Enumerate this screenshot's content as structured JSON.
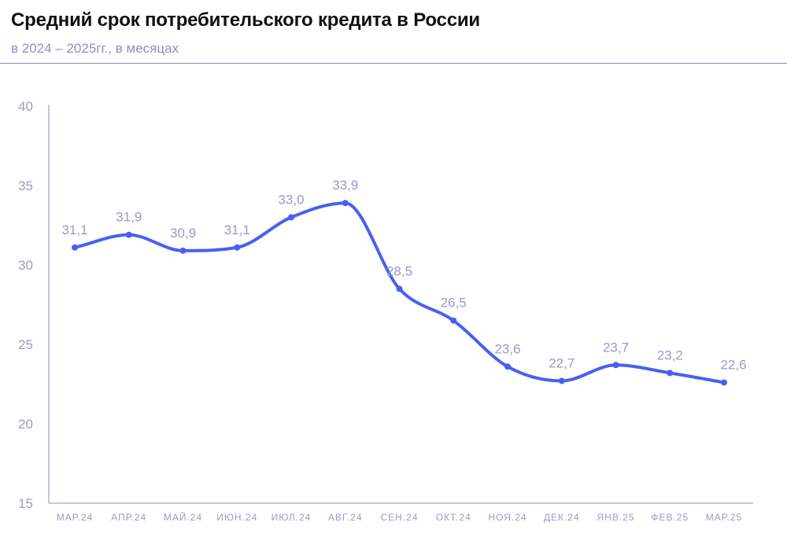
{
  "header": {
    "title": "Средний срок потребительского кредита в России",
    "subtitle": "в 2024 – 2025гг., в месяцах"
  },
  "colors": {
    "line": "#4a5ff0",
    "axis": "#8f8ec2",
    "text": "#9a99c8"
  },
  "chart_data": {
    "type": "line",
    "categories": [
      "МАР.24",
      "АПР.24",
      "МАЙ.24",
      "ИЮН.24",
      "ИЮЛ.24",
      "АВГ.24",
      "СЕН.24",
      "ОКТ.24",
      "НОЯ.24",
      "ДЕК.24",
      "ЯНВ.25",
      "ФЕВ.25",
      "МАР.25"
    ],
    "series": [
      {
        "values": [
          31.1,
          31.9,
          30.9,
          31.1,
          33.0,
          33.9,
          28.5,
          26.5,
          23.6,
          22.7,
          23.7,
          23.2,
          22.6
        ],
        "labels": [
          "31,1",
          "31,9",
          "30,9",
          "31,1",
          "33,0",
          "33,9",
          "28,5",
          "26,5",
          "23,6",
          "22,7",
          "23,7",
          "23,2",
          "22,6"
        ]
      }
    ],
    "yticks": [
      "15",
      "20",
      "25",
      "30",
      "35",
      "40"
    ],
    "ylim": [
      15,
      40
    ],
    "grid": false,
    "legend": "none"
  }
}
